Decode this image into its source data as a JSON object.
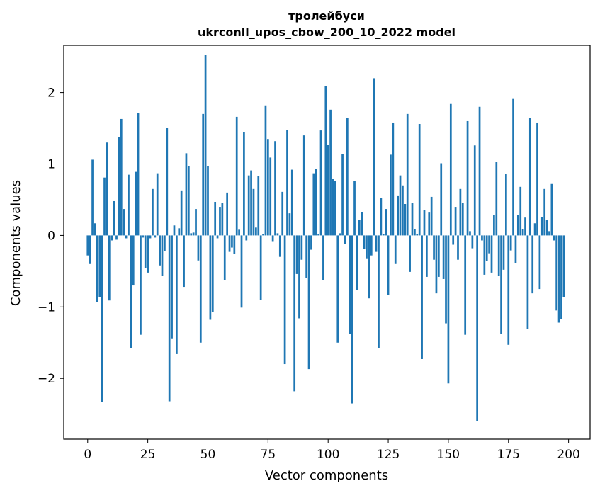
{
  "chart_data": {
    "type": "bar",
    "title": [
      "тролейбуси",
      "ukrconll_upos_cbow_200_10_2022 model"
    ],
    "xlabel": "Vector components",
    "ylabel": "Components values",
    "xlim": [
      -9.95,
      208.95
    ],
    "ylim": [
      -2.85,
      2.66
    ],
    "xticks": [
      0,
      25,
      50,
      75,
      100,
      125,
      150,
      175,
      200
    ],
    "yticks": [
      -2,
      -1,
      0,
      1,
      2
    ],
    "ytick_labels": [
      "−2",
      "−1",
      "0",
      "1",
      "2"
    ],
    "grid": false,
    "bar_color": "#1f77b4",
    "values": [
      -0.28,
      -0.4,
      1.06,
      0.17,
      -0.93,
      -0.86,
      -2.33,
      0.81,
      1.3,
      -0.91,
      -0.07,
      0.48,
      -0.06,
      1.38,
      1.63,
      0.37,
      -0.04,
      0.85,
      -1.58,
      -0.7,
      0.89,
      1.71,
      -1.39,
      -0.03,
      -0.46,
      -0.52,
      -0.04,
      0.65,
      -0.03,
      0.87,
      -0.42,
      -0.57,
      -0.22,
      1.51,
      -2.32,
      -1.44,
      0.14,
      -1.66,
      0.1,
      0.63,
      -0.72,
      1.15,
      0.97,
      0.03,
      0.04,
      0.37,
      -0.35,
      -1.5,
      1.7,
      2.53,
      0.97,
      -1.18,
      -1.07,
      0.47,
      -0.04,
      0.4,
      0.46,
      -0.63,
      0.6,
      -0.23,
      -0.17,
      -0.26,
      1.66,
      0.08,
      -1.01,
      1.45,
      -0.07,
      0.84,
      0.91,
      0.65,
      0.11,
      0.83,
      -0.9,
      0.02,
      1.82,
      1.35,
      1.09,
      -0.08,
      1.32,
      0.03,
      -0.3,
      0.61,
      -1.8,
      1.48,
      0.31,
      0.92,
      -2.18,
      -0.54,
      -1.16,
      -0.34,
      1.4,
      -0.6,
      -1.87,
      -0.2,
      0.87,
      0.93,
      0.02,
      1.47,
      -0.63,
      2.09,
      1.27,
      1.76,
      0.79,
      0.76,
      -1.5,
      0.03,
      1.14,
      -0.12,
      1.64,
      -1.38,
      -2.35,
      0.76,
      -0.76,
      0.22,
      0.33,
      -0.19,
      -0.32,
      -0.88,
      -0.28,
      2.2,
      -0.23,
      -1.58,
      0.52,
      0.02,
      0.37,
      -0.83,
      1.13,
      1.58,
      -0.4,
      0.56,
      0.84,
      0.7,
      0.44,
      1.7,
      -0.51,
      0.45,
      0.09,
      0.02,
      1.56,
      -1.73,
      0.36,
      -0.58,
      0.32,
      0.54,
      -0.34,
      -0.81,
      -0.58,
      1.01,
      -0.61,
      -1.23,
      -2.07,
      1.84,
      -0.13,
      0.4,
      -0.34,
      0.65,
      0.46,
      -1.39,
      1.6,
      0.06,
      -0.18,
      1.26,
      -2.6,
      1.8,
      -0.07,
      -0.55,
      -0.36,
      -0.25,
      -0.52,
      0.29,
      1.03,
      -0.57,
      -1.38,
      -0.48,
      0.86,
      -1.53,
      -0.21,
      1.91,
      -0.39,
      0.29,
      0.68,
      0.09,
      0.25,
      -1.31,
      1.64,
      -0.81,
      0.17,
      1.58,
      -0.75,
      0.26,
      0.65,
      0.22,
      0.06,
      0.72,
      -0.07,
      -1.05,
      -1.22,
      -1.17,
      -0.86
    ]
  }
}
